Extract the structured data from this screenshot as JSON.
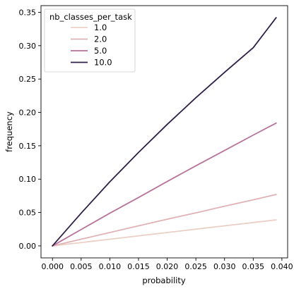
{
  "chart_data": {
    "type": "line",
    "xlabel": "probability",
    "ylabel": "frequency",
    "xlim": [
      -0.002,
      0.041
    ],
    "ylim": [
      -0.018,
      0.36
    ],
    "xticks": [
      "0.000",
      "0.005",
      "0.010",
      "0.015",
      "0.020",
      "0.025",
      "0.030",
      "0.035",
      "0.040"
    ],
    "xtick_values": [
      0.0,
      0.005,
      0.01,
      0.015,
      0.02,
      0.025,
      0.03,
      0.035,
      0.04
    ],
    "yticks": [
      "0.00",
      "0.05",
      "0.10",
      "0.15",
      "0.20",
      "0.25",
      "0.30",
      "0.35"
    ],
    "ytick_values": [
      0.0,
      0.05,
      0.1,
      0.15,
      0.2,
      0.25,
      0.3,
      0.35
    ],
    "grid": false,
    "legend": {
      "title": "nb_classes_per_task",
      "placement": "top-left"
    },
    "series": [
      {
        "name": "1.0",
        "color": "#ebcfc6",
        "x": [
          0.0,
          0.005,
          0.01,
          0.015,
          0.02,
          0.025,
          0.03,
          0.035,
          0.039
        ],
        "y": [
          0.0,
          0.005,
          0.01,
          0.015,
          0.02,
          0.025,
          0.03,
          0.035,
          0.039
        ]
      },
      {
        "name": "2.0",
        "color": "#dfb2b6",
        "x": [
          0.0,
          0.005,
          0.01,
          0.015,
          0.02,
          0.025,
          0.03,
          0.035,
          0.039
        ],
        "y": [
          0.0,
          0.01,
          0.02,
          0.03,
          0.04,
          0.0495,
          0.0595,
          0.069,
          0.077
        ]
      },
      {
        "name": "5.0",
        "color": "#b8739a",
        "x": [
          0.0,
          0.005,
          0.01,
          0.015,
          0.02,
          0.025,
          0.03,
          0.035,
          0.039
        ],
        "y": [
          0.0,
          0.0245,
          0.049,
          0.0725,
          0.0965,
          0.12,
          0.143,
          0.166,
          0.184
        ]
      },
      {
        "name": "10.0",
        "color": "#2e1f47",
        "x": [
          0.0,
          0.005,
          0.01,
          0.015,
          0.02,
          0.025,
          0.03,
          0.035,
          0.039
        ],
        "y": [
          0.0,
          0.049,
          0.096,
          0.14,
          0.182,
          0.222,
          0.26,
          0.297,
          0.342
        ]
      }
    ]
  }
}
